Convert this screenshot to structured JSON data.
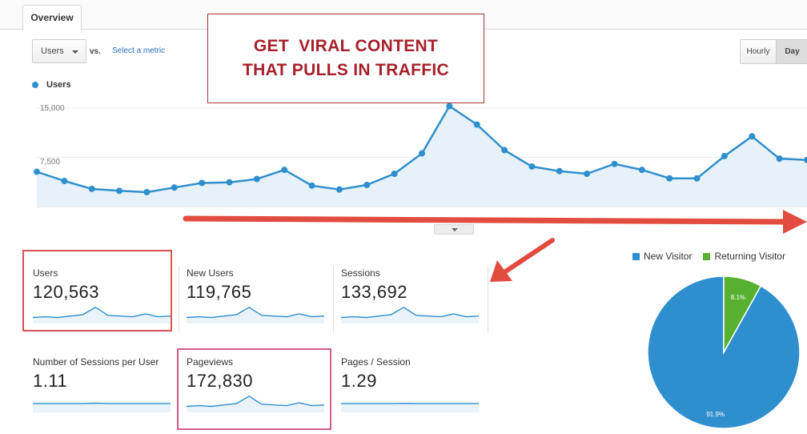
{
  "tabs": {
    "overview": "Overview"
  },
  "controls": {
    "metric_select": "Users",
    "vs_label": "vs.",
    "select_metric_link": "Select a metric",
    "granularity": {
      "hourly": "Hourly",
      "day": "Day"
    }
  },
  "promo": {
    "line1": "GET  VIRAL CONTENT",
    "line2": "THAT PULLS IN TRAFFIC"
  },
  "chart_data": {
    "type": "area",
    "title": "",
    "xlabel": "",
    "ylabel": "",
    "series": [
      {
        "name": "Users",
        "values": [
          5300,
          3900,
          2700,
          2400,
          2200,
          2900,
          3600,
          3700,
          4200,
          5600,
          3200,
          2600,
          3300,
          5000,
          8100,
          15300,
          12500,
          8600,
          6100,
          5400,
          5000,
          6500,
          5600,
          4300,
          4300,
          7700,
          10700,
          7300,
          7100
        ]
      }
    ],
    "yticks": [
      "15,000",
      "7,500"
    ],
    "ylim": [
      0,
      15000
    ],
    "grid": true,
    "colors": {
      "line": "#2f8fce",
      "fill": "#e6f1f9"
    }
  },
  "scorecards": [
    {
      "label": "Users",
      "value": "120,563",
      "spark": [
        3,
        3.5,
        3,
        4,
        5,
        10,
        4.5,
        4,
        3.5,
        5.5,
        3.5,
        4
      ]
    },
    {
      "label": "New Users",
      "value": "119,765",
      "spark": [
        3,
        3.5,
        3,
        4,
        5,
        10,
        4.5,
        4,
        3.5,
        5.5,
        3.5,
        4
      ]
    },
    {
      "label": "Sessions",
      "value": "133,692",
      "spark": [
        3,
        3.5,
        3,
        4,
        5,
        10,
        4.5,
        4,
        3.5,
        5.5,
        3.5,
        4
      ]
    },
    {
      "label": "Number of Sessions per User",
      "value": "1.11",
      "spark": [
        5,
        5,
        5,
        5,
        5,
        5.2,
        5,
        5,
        5,
        5,
        5,
        5
      ]
    },
    {
      "label": "Pageviews",
      "value": "172,830",
      "spark": [
        3,
        3.5,
        3,
        4,
        5,
        10,
        4.5,
        4,
        3.5,
        5.5,
        3.5,
        4
      ]
    },
    {
      "label": "Pages / Session",
      "value": "1.29",
      "spark": [
        5,
        5,
        5,
        5,
        5,
        5.1,
        5,
        5,
        5,
        5,
        5,
        5
      ]
    }
  ],
  "pie": {
    "legend": {
      "new": "New Visitor",
      "returning": "Returning Visitor"
    },
    "new_label": "91.9%",
    "returning_label": "8.1%",
    "new_pct": 91.9,
    "returning_pct": 8.1,
    "colors": {
      "new": "#2f8fce",
      "returning": "#58b030"
    }
  },
  "annotation_color": "#e24b40"
}
